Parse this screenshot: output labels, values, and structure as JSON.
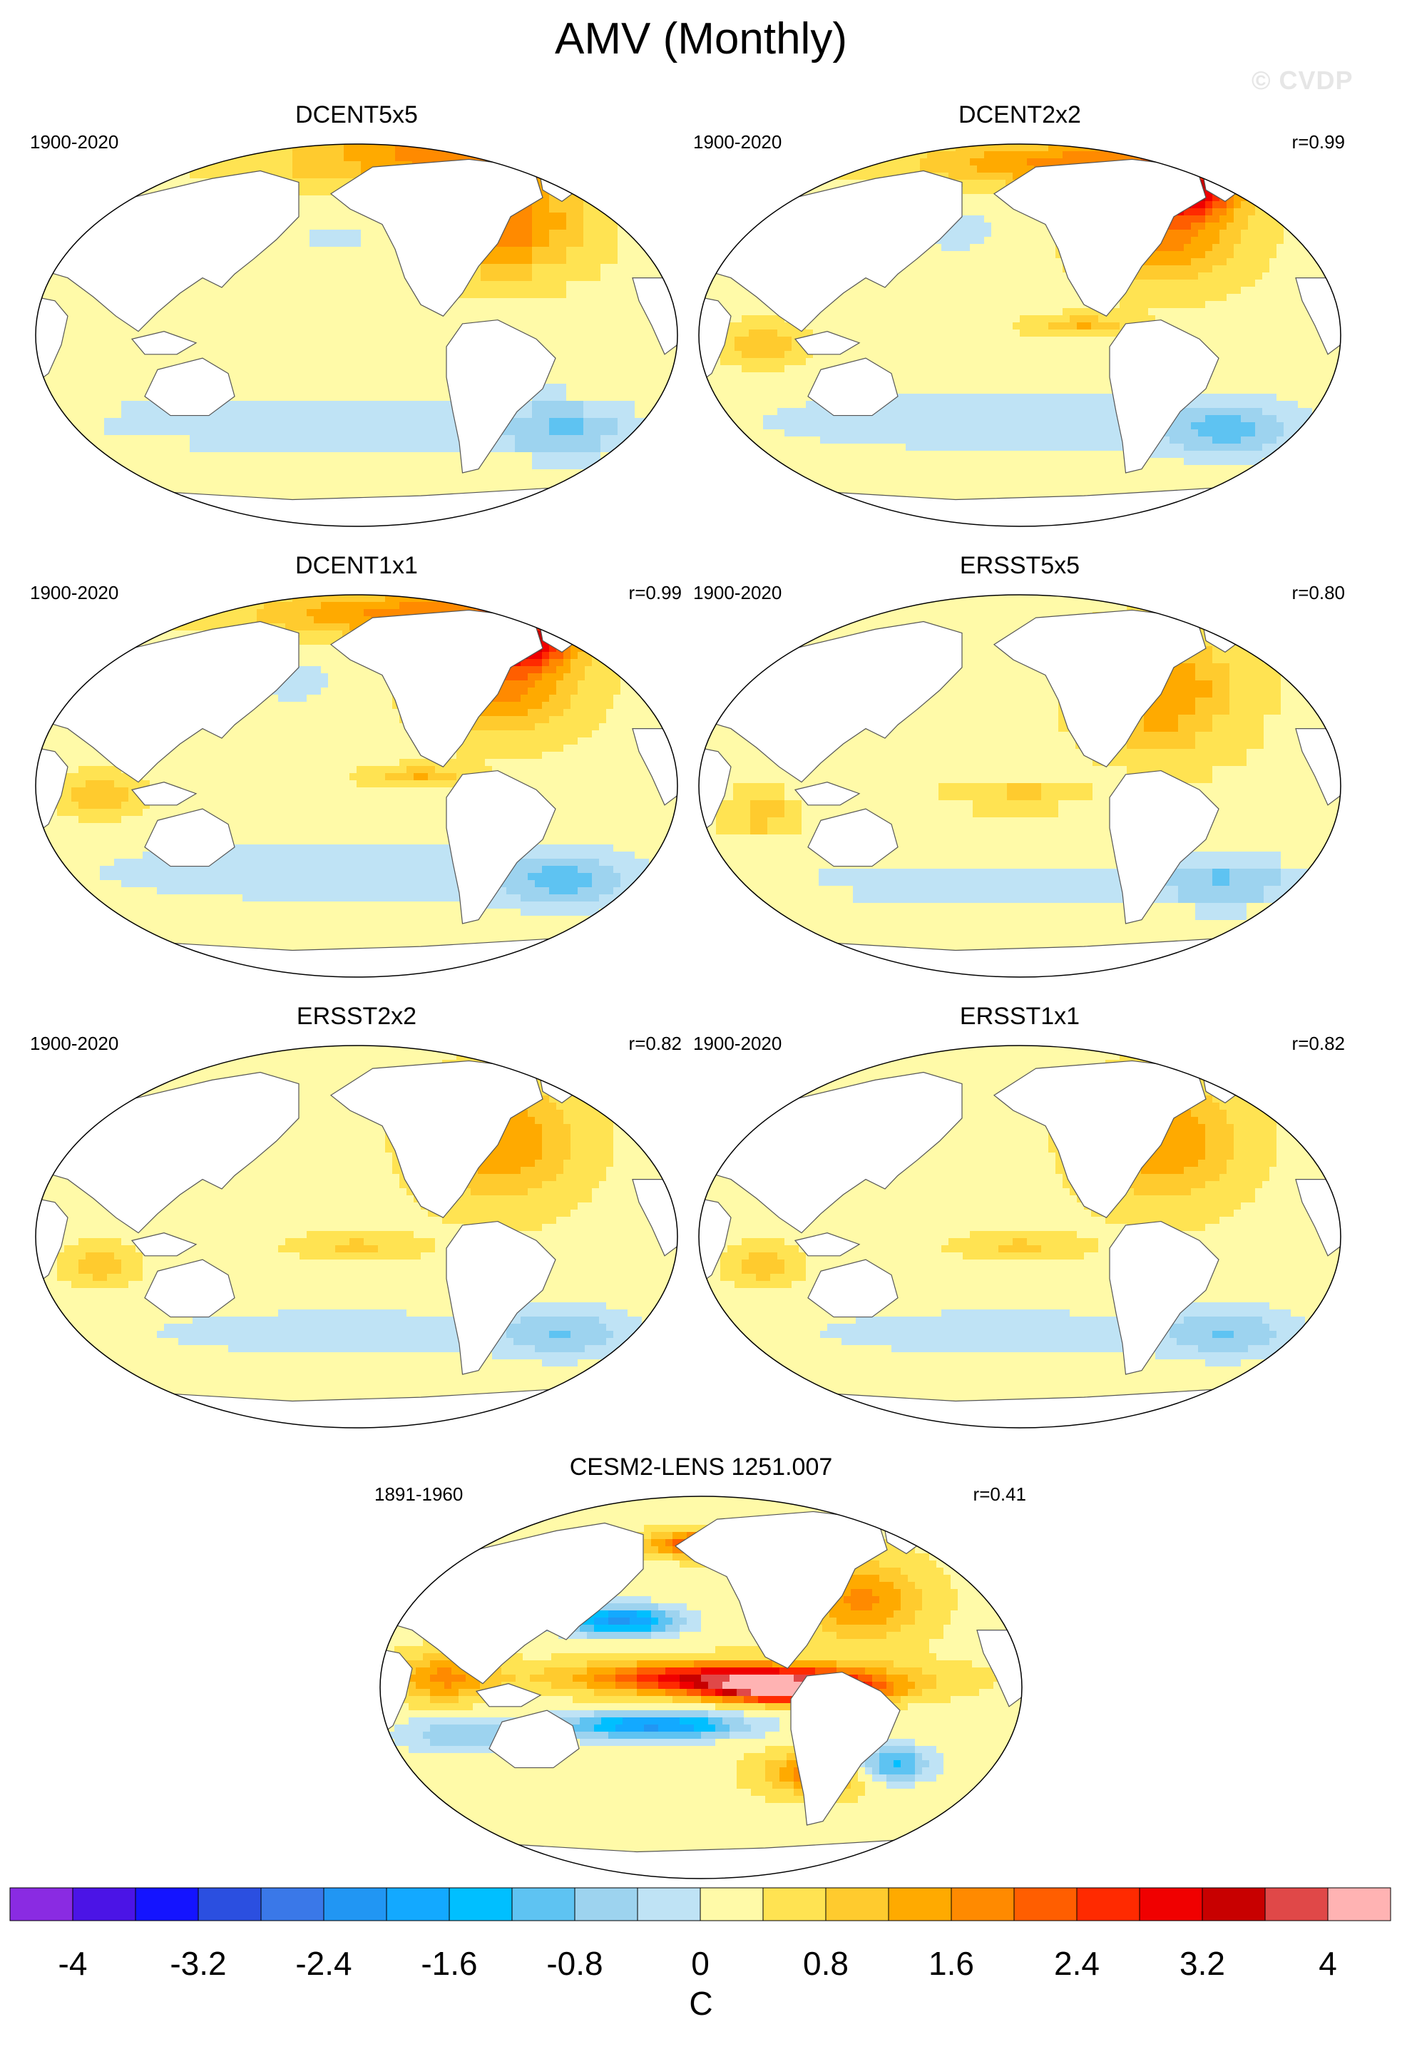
{
  "title": "AMV (Monthly)",
  "watermark": "© CVDP",
  "panels": [
    {
      "id": "dcent5x5",
      "title": "DCENT5x5",
      "period": "1900-2020",
      "corr": "",
      "pattern": "obs_coarse",
      "blocky": true
    },
    {
      "id": "dcent2x2",
      "title": "DCENT2x2",
      "period": "1900-2020",
      "corr": "r=0.99",
      "pattern": "obs_strong",
      "blocky": false
    },
    {
      "id": "dcent1x1",
      "title": "DCENT1x1",
      "period": "1900-2020",
      "corr": "r=0.99",
      "pattern": "obs_strong",
      "blocky": false
    },
    {
      "id": "ersst5x5",
      "title": "ERSST5x5",
      "period": "1900-2020",
      "corr": "r=0.80",
      "pattern": "obs_weak",
      "blocky": true
    },
    {
      "id": "ersst2x2",
      "title": "ERSST2x2",
      "period": "1900-2020",
      "corr": "r=0.82",
      "pattern": "obs_weak",
      "blocky": false
    },
    {
      "id": "ersst1x1",
      "title": "ERSST1x1",
      "period": "1900-2020",
      "corr": "r=0.82",
      "pattern": "obs_weak",
      "blocky": false
    },
    {
      "id": "cesm2",
      "title": "CESM2-LENS 1251.007",
      "period": "1891-1960",
      "corr": "r=0.41",
      "pattern": "model",
      "blocky": false
    }
  ],
  "chart_data": {
    "type": "heatmap",
    "projection": "Robinson (global)",
    "variable": "AMV (Monthly) SST regression",
    "units": "C",
    "colorbar": {
      "levels": [
        -4,
        -3.6,
        -3.2,
        -2.8,
        -2.4,
        -2,
        -1.6,
        -1.2,
        -0.8,
        -0.4,
        0,
        0.4,
        0.8,
        1.2,
        1.6,
        2,
        2.4,
        2.8,
        3.2,
        3.6,
        4
      ],
      "tick_labels": [
        "-4",
        "-3.2",
        "-2.4",
        "-1.6",
        "-0.8",
        "0",
        "0.8",
        "1.6",
        "2.4",
        "3.2",
        "4"
      ],
      "colors": [
        "#8a2be2",
        "#4b14e6",
        "#1414ff",
        "#2b4fe0",
        "#3a78e8",
        "#2196f3",
        "#13a9ff",
        "#00bfff",
        "#5ec3f2",
        "#9dd3ef",
        "#bfe3f5",
        "#fffaa8",
        "#ffe352",
        "#ffcb2e",
        "#ffaa00",
        "#ff8a00",
        "#ff5e00",
        "#ff2a00",
        "#f00000",
        "#c80000",
        "#e04848",
        "#ffb3b3"
      ],
      "unit_label": "C"
    }
  }
}
